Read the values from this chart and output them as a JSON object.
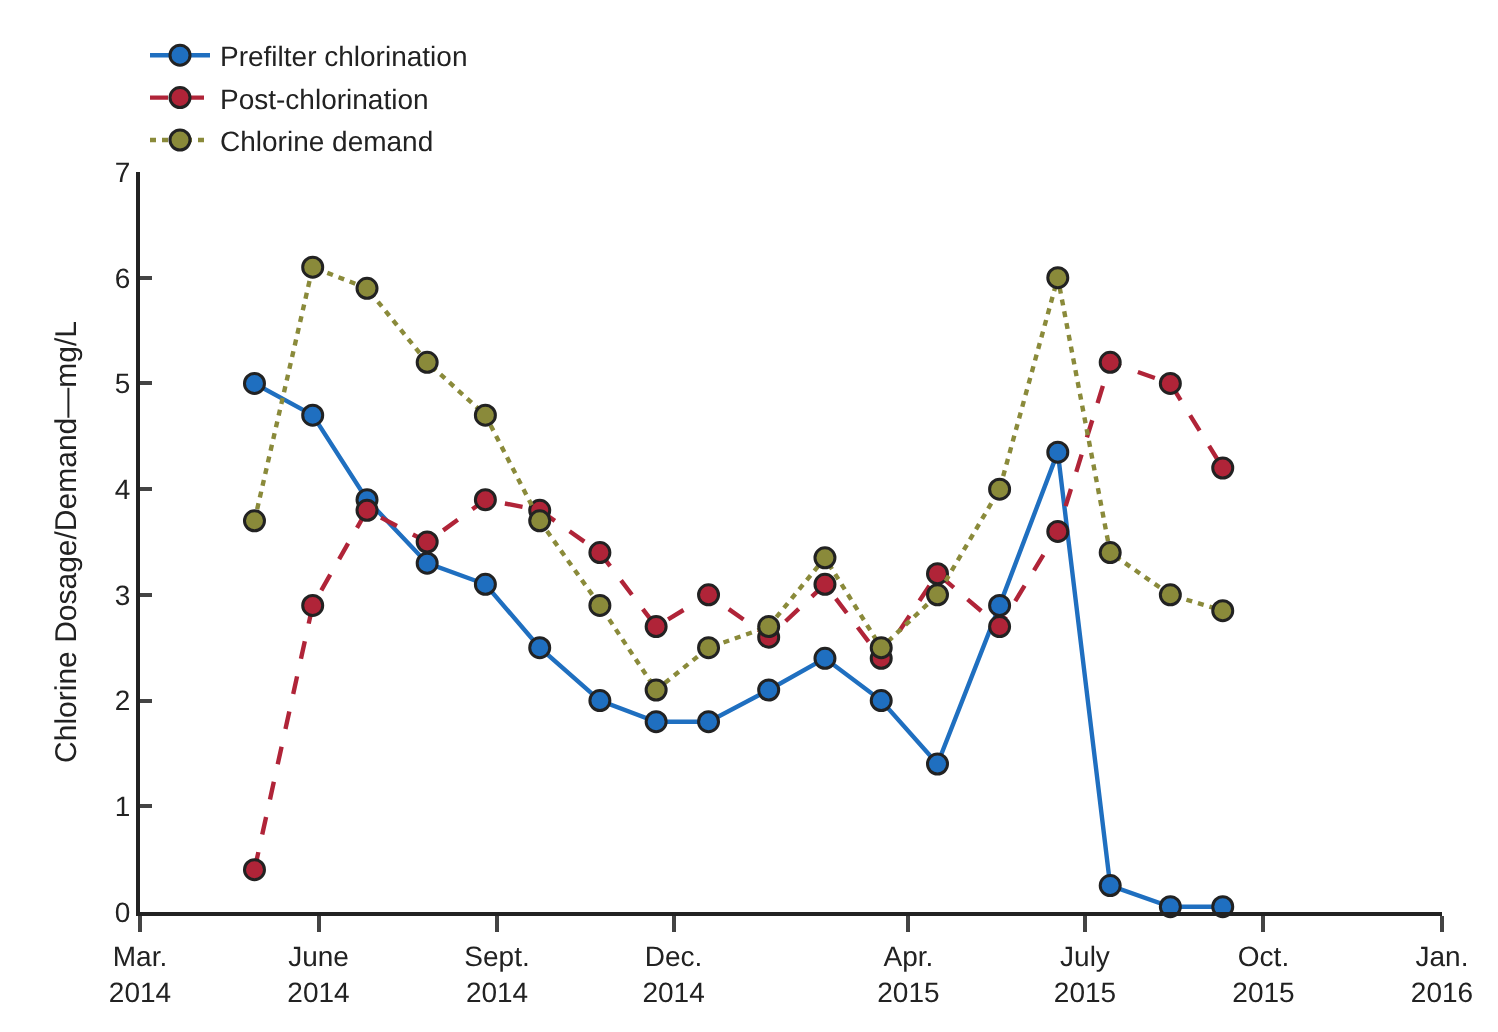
{
  "chart_data": {
    "type": "line",
    "ylabel": "Chlorine Dosage/Demand—mg/L",
    "x": [
      "2014-04-29",
      "2014-05-29",
      "2014-06-26",
      "2014-07-27",
      "2014-08-26",
      "2014-09-23",
      "2014-10-24",
      "2014-11-22",
      "2014-12-19",
      "2015-01-19",
      "2015-02-17",
      "2015-03-18",
      "2015-04-16",
      "2015-05-18",
      "2015-06-17",
      "2015-07-14",
      "2015-08-14",
      "2015-09-10"
    ],
    "series": [
      {
        "name": "Prefilter chlorination",
        "color": "#1f6fc0",
        "line_style": "solid",
        "values": [
          5.0,
          4.7,
          3.9,
          3.3,
          3.1,
          2.5,
          2.0,
          1.8,
          1.8,
          2.1,
          2.4,
          2.0,
          1.4,
          2.9,
          4.35,
          0.25,
          0.05,
          0.05
        ]
      },
      {
        "name": "Post-chlorination",
        "color": "#b02438",
        "line_style": "dashed",
        "values": [
          0.4,
          2.9,
          3.8,
          3.5,
          3.9,
          3.8,
          3.4,
          2.7,
          3.0,
          2.6,
          3.1,
          2.4,
          3.2,
          2.7,
          3.6,
          5.2,
          5.0,
          4.2
        ]
      },
      {
        "name": "Chlorine demand",
        "color": "#8a8a3a",
        "line_style": "dotted",
        "values": [
          3.7,
          6.1,
          5.9,
          5.2,
          4.7,
          3.7,
          2.9,
          2.1,
          2.5,
          2.7,
          3.35,
          2.5,
          3.0,
          4.0,
          6.0,
          3.4,
          3.0,
          2.85
        ]
      }
    ],
    "marker": "circle",
    "xlim": [
      "2014-03-01",
      "2016-01-01"
    ],
    "xticks": [
      {
        "value": "2014-03-01",
        "label": "Mar.\n2014"
      },
      {
        "value": "2014-06-01",
        "label": "June\n2014"
      },
      {
        "value": "2014-09-01",
        "label": "Sept.\n2014"
      },
      {
        "value": "2014-12-01",
        "label": "Dec.\n2014"
      },
      {
        "value": "2015-04-01",
        "label": "Apr.\n2015"
      },
      {
        "value": "2015-07-01",
        "label": "July\n2015"
      },
      {
        "value": "2015-10-01",
        "label": "Oct.\n2015"
      },
      {
        "value": "2016-01-01",
        "label": "Jan.\n2016"
      }
    ],
    "ylim": [
      0,
      7
    ],
    "yticks": [
      0,
      1,
      2,
      3,
      4,
      5,
      6,
      7
    ],
    "legend": "top left"
  }
}
